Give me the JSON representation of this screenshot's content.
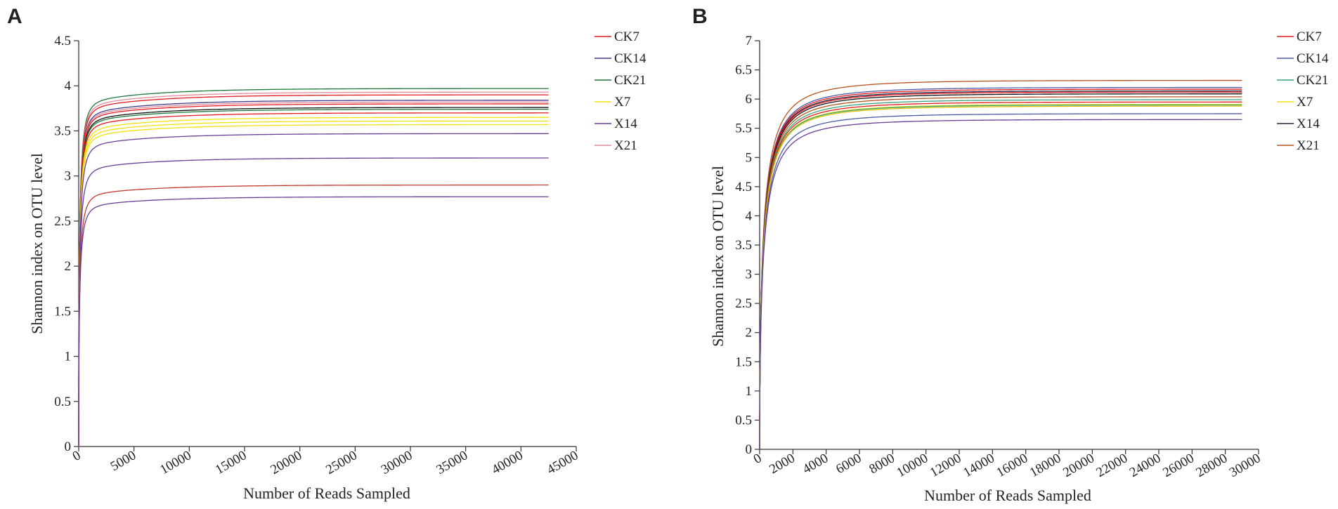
{
  "chart_data": [
    {
      "type": "line",
      "panel": "A",
      "xlabel": "Number of Reads Sampled",
      "ylabel": "Shannon index on OTU level",
      "xlim": [
        0,
        45000
      ],
      "ylim": [
        0,
        4.5
      ],
      "xticks": [
        "0",
        "5000",
        "10000",
        "15000",
        "20000",
        "25000",
        "30000",
        "35000",
        "40000",
        "45000"
      ],
      "yticks": [
        "0",
        "0.5",
        "1",
        "1.5",
        "2",
        "2.5",
        "3",
        "3.5",
        "4",
        "4.5"
      ],
      "x_max_sampled": 42500,
      "legend": [
        {
          "label": "CK7",
          "color": "#e41a1c"
        },
        {
          "label": "CK14",
          "color": "#3c3c8c"
        },
        {
          "label": "CK21",
          "color": "#1b7837"
        },
        {
          "label": "X7",
          "color": "#f2e20f"
        },
        {
          "label": "X14",
          "color": "#6a3d9a"
        },
        {
          "label": "X21",
          "color": "#e28a9a"
        }
      ],
      "series": [
        {
          "name": "CK21 rep 1",
          "color": "#1b7837",
          "plateau": 3.97
        },
        {
          "name": "X21 rep 1",
          "color": "#e28a9a",
          "plateau": 3.93
        },
        {
          "name": "CK7 rep 1",
          "color": "#e41a1c",
          "plateau": 3.9
        },
        {
          "name": "CK14 rep 1",
          "color": "#3c3c8c",
          "plateau": 3.84
        },
        {
          "name": "X21 rep 2",
          "color": "#e28a9a",
          "plateau": 3.82
        },
        {
          "name": "CK7 rep 2",
          "color": "#e41a1c",
          "plateau": 3.8
        },
        {
          "name": "CK14 rep 2",
          "color": "#111111",
          "plateau": 3.76
        },
        {
          "name": "CK21 rep 2",
          "color": "#1b7837",
          "plateau": 3.74
        },
        {
          "name": "CK7 rep 3",
          "color": "#e41a1c",
          "plateau": 3.7
        },
        {
          "name": "X7 rep 1",
          "color": "#f2e20f",
          "plateau": 3.65
        },
        {
          "name": "X7 rep 2",
          "color": "#f2e20f",
          "plateau": 3.61
        },
        {
          "name": "X7 rep 3",
          "color": "#f2e20f",
          "plateau": 3.57
        },
        {
          "name": "X14 rep 1",
          "color": "#6a3d9a",
          "plateau": 3.47
        },
        {
          "name": "X14 rep 2",
          "color": "#6a3d9a",
          "plateau": 3.2
        },
        {
          "name": "CK21 rep 3",
          "color": "#c0392b",
          "plateau": 2.9
        },
        {
          "name": "X14 rep 3",
          "color": "#6a3d9a",
          "plateau": 2.77
        }
      ]
    },
    {
      "type": "line",
      "panel": "B",
      "xlabel": "Number of Reads Sampled",
      "ylabel": "Shannon index on OTU level",
      "xlim": [
        0,
        30000
      ],
      "ylim": [
        0,
        7
      ],
      "xticks": [
        "0",
        "2000",
        "4000",
        "6000",
        "8000",
        "10000",
        "12000",
        "14000",
        "16000",
        "18000",
        "20000",
        "22000",
        "24000",
        "26000",
        "28000",
        "30000"
      ],
      "yticks": [
        "0",
        "0.5",
        "1",
        "1.5",
        "2",
        "2.5",
        "3",
        "3.5",
        "4",
        "4.5",
        "5",
        "5.5",
        "6",
        "6.5",
        "7"
      ],
      "x_max_sampled": 29000,
      "legend": [
        {
          "label": "CK7",
          "color": "#e41a1c"
        },
        {
          "label": "CK14",
          "color": "#4a5ca8"
        },
        {
          "label": "CK21",
          "color": "#3aa079"
        },
        {
          "label": "X7",
          "color": "#f2e20f"
        },
        {
          "label": "X14",
          "color": "#222244"
        },
        {
          "label": "X21",
          "color": "#b5521b"
        }
      ],
      "series": [
        {
          "name": "X21 rep 1",
          "color": "#b5521b",
          "plateau": 6.32
        },
        {
          "name": "CK14 rep 1",
          "color": "#4a5ca8",
          "plateau": 6.2
        },
        {
          "name": "CK7 rep 1",
          "color": "#e41a1c",
          "plateau": 6.17
        },
        {
          "name": "X14 rep 1",
          "color": "#222244",
          "plateau": 6.14
        },
        {
          "name": "CK7 rep 2",
          "color": "#e41a1c",
          "plateau": 6.12
        },
        {
          "name": "X14 rep 2",
          "color": "#111111",
          "plateau": 6.09
        },
        {
          "name": "X21 rep 2",
          "color": "#b5521b",
          "plateau": 6.04
        },
        {
          "name": "CK21 rep 1",
          "color": "#3aa079",
          "plateau": 5.99
        },
        {
          "name": "CK7 rep 3",
          "color": "#e41a1c",
          "plateau": 5.95
        },
        {
          "name": "X7 rep 1",
          "color": "#f2e20f",
          "plateau": 5.91
        },
        {
          "name": "CK21 rep 2",
          "color": "#3aa079",
          "plateau": 5.9
        },
        {
          "name": "X7 rep 2",
          "color": "#e0c000",
          "plateau": 5.88
        },
        {
          "name": "CK14 rep 2",
          "color": "#4a5ca8",
          "plateau": 5.75
        },
        {
          "name": "X14 rep 3",
          "color": "#6a3d9a",
          "plateau": 5.65
        }
      ]
    }
  ]
}
